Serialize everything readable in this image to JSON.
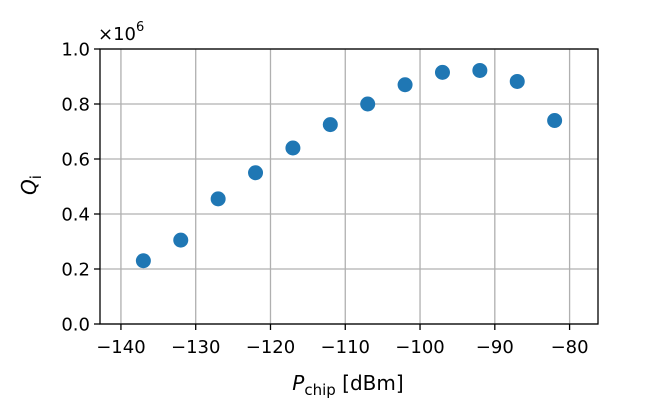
{
  "chart_data": {
    "type": "scatter",
    "title": "",
    "xlabel_main": "P",
    "xlabel_sub": "chip",
    "xlabel_unit": " [dBm]",
    "ylabel_main": "Q",
    "ylabel_sub": "i",
    "y_multiplier_base": "×10",
    "y_multiplier_exp": "6",
    "xlim": [
      -142.8,
      -76.2
    ],
    "ylim": [
      0.0,
      1.0
    ],
    "x_ticks": [
      -140,
      -130,
      -120,
      -110,
      -100,
      -90,
      -80
    ],
    "x_tick_labels": [
      "−140",
      "−130",
      "−120",
      "−110",
      "−100",
      "−90",
      "−80"
    ],
    "y_ticks": [
      0.0,
      0.2,
      0.4,
      0.6,
      0.8,
      1.0
    ],
    "y_tick_labels": [
      "0.0",
      "0.2",
      "0.4",
      "0.6",
      "0.8",
      "1.0"
    ],
    "grid": true,
    "marker_color": "#1f77b4",
    "series": [
      {
        "x": [
          -137,
          -132,
          -127,
          -122,
          -117,
          -112,
          -107,
          -102,
          -97,
          -92,
          -87,
          -82
        ],
        "y": [
          0.23,
          0.305,
          0.455,
          0.55,
          0.64,
          0.725,
          0.8,
          0.87,
          0.915,
          0.922,
          0.882,
          0.74
        ]
      }
    ]
  }
}
